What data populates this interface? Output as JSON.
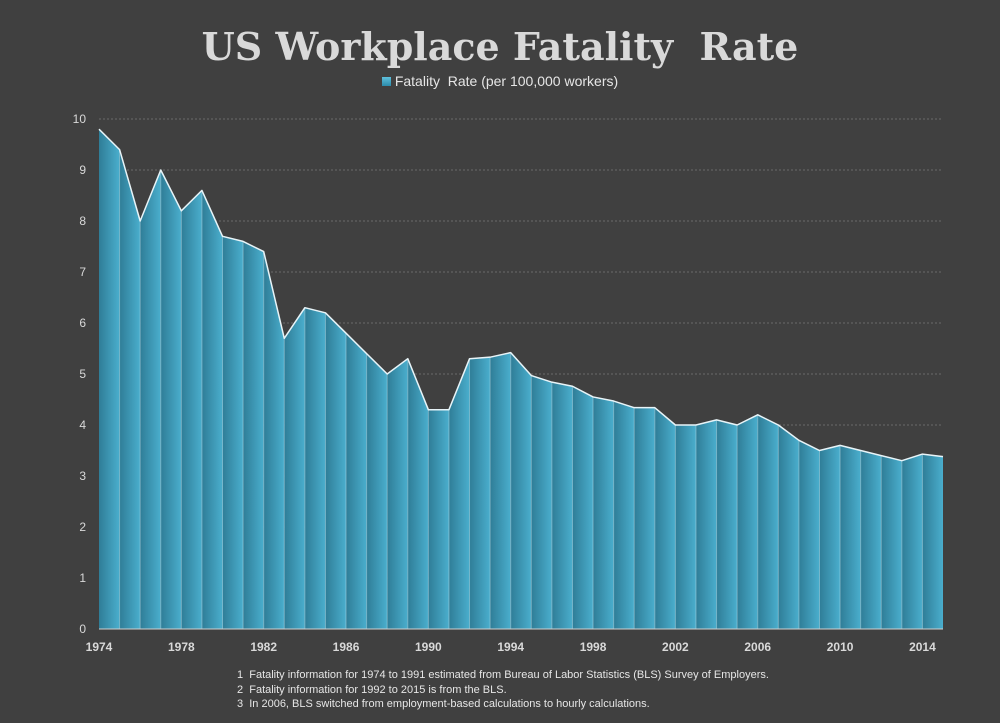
{
  "chart_data": {
    "type": "area",
    "title": "US Workplace Fatality  Rate",
    "xlabel": "",
    "ylabel": "",
    "legend_position": "top-center",
    "series": [
      {
        "name": "Fatality  Rate (per 100,000 workers)",
        "color": "#3a9dbd",
        "values": [
          9.8,
          9.4,
          8.0,
          9.0,
          8.2,
          8.6,
          7.7,
          7.6,
          7.4,
          5.7,
          6.3,
          6.2,
          5.8,
          5.4,
          5.0,
          5.3,
          4.3,
          4.3,
          5.3,
          5.33,
          5.42,
          4.97,
          4.84,
          4.76,
          4.55,
          4.47,
          4.34,
          4.34,
          4.0,
          4.0,
          4.1,
          4.0,
          4.2,
          4.0,
          3.7,
          3.5,
          3.6,
          3.5,
          3.4,
          3.3,
          3.43,
          3.38
        ]
      }
    ],
    "x": [
      1974,
      1975,
      1976,
      1977,
      1978,
      1979,
      1980,
      1981,
      1982,
      1983,
      1984,
      1985,
      1986,
      1987,
      1988,
      1989,
      1990,
      1991,
      1992,
      1993,
      1994,
      1995,
      1996,
      1997,
      1998,
      1999,
      2000,
      2001,
      2002,
      2003,
      2004,
      2005,
      2006,
      2007,
      2008,
      2009,
      2010,
      2011,
      2012,
      2013,
      2014,
      2015
    ],
    "x_tick_labels": [
      "1974",
      "1978",
      "1982",
      "1986",
      "1990",
      "1994",
      "1998",
      "2002",
      "2006",
      "2010",
      "2014"
    ],
    "y_tick_labels": [
      "0",
      "1",
      "2",
      "3",
      "4",
      "5",
      "6",
      "7",
      "8",
      "9",
      "10"
    ],
    "ylim": [
      0,
      10
    ],
    "grid": true,
    "colors": {
      "background": "#404040",
      "area_left": "#2f7d97",
      "area_right": "#4aaecd",
      "outline": "#e8f4f8",
      "gridline": "#6a6a6a",
      "text": "#d9d9d9"
    },
    "footnotes": [
      "1  Fatality information for 1974 to 1991 estimated from Bureau of Labor Statistics (BLS) Survey of Employers.",
      "2  Fatality information for 1992 to 2015 is from the BLS.",
      "3  In 2006, BLS switched from employment-based calculations to hourly calculations."
    ]
  }
}
